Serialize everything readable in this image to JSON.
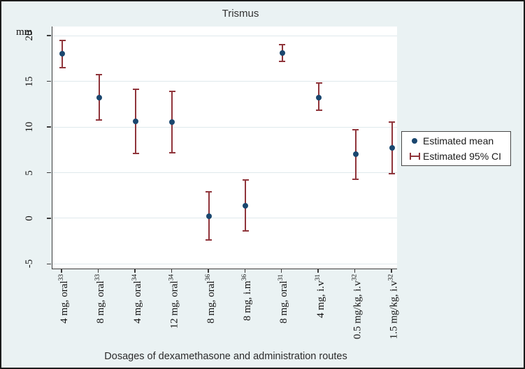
{
  "figure": {
    "title": "Trismus",
    "y_axis": {
      "unit": "mm"
    },
    "x_axis": {
      "title": "Dosages of dexamethasone and administration routes"
    }
  },
  "legend": {
    "items": [
      {
        "symbol": "mean-dot",
        "label": "Estimated mean"
      },
      {
        "symbol": "ci-bar",
        "label": "Estimated 95% CI"
      }
    ]
  },
  "colors": {
    "mean": "#1a476f",
    "ci": "#90353b",
    "background": "#eaf2f3",
    "plot_background": "#ffffff",
    "grid": "#dfe9ec"
  },
  "chart_data": {
    "type": "scatter",
    "title": "Trismus",
    "xlabel": "Dosages of dexamethasone and administration routes",
    "ylabel": "mm",
    "ylim": [
      -5.5,
      21
    ],
    "yticks": [
      20,
      15,
      10,
      5,
      0,
      -5
    ],
    "grid": true,
    "legend_position": "right",
    "categories": [
      {
        "label": "4 mg, oral",
        "ref": "33"
      },
      {
        "label": "8 mg, oral",
        "ref": "33"
      },
      {
        "label": "4 mg, oral",
        "ref": "34"
      },
      {
        "label": "12 mg, oral",
        "ref": "34"
      },
      {
        "label": "8 mg, oral",
        "ref": "36"
      },
      {
        "label": "8 mg, i.m",
        "ref": "36"
      },
      {
        "label": "8 mg, oral",
        "ref": "31"
      },
      {
        "label": "4 mg, i.v",
        "ref": "31"
      },
      {
        "label": "0.5 mg/kg, i.v",
        "ref": "32"
      },
      {
        "label": "1.5 mg/kg, i.v",
        "ref": "32"
      }
    ],
    "series": [
      {
        "name": "Estimated mean",
        "values": [
          18.0,
          13.2,
          10.6,
          10.5,
          0.2,
          1.4,
          18.1,
          13.2,
          7.0,
          7.7
        ]
      },
      {
        "name": "Estimated 95% CI",
        "ci_low": [
          16.5,
          10.8,
          7.1,
          7.2,
          -2.4,
          -1.4,
          17.2,
          11.8,
          4.3,
          4.9
        ],
        "ci_high": [
          19.5,
          15.7,
          14.1,
          13.9,
          2.9,
          4.2,
          19.0,
          14.8,
          9.7,
          10.5
        ]
      }
    ]
  }
}
